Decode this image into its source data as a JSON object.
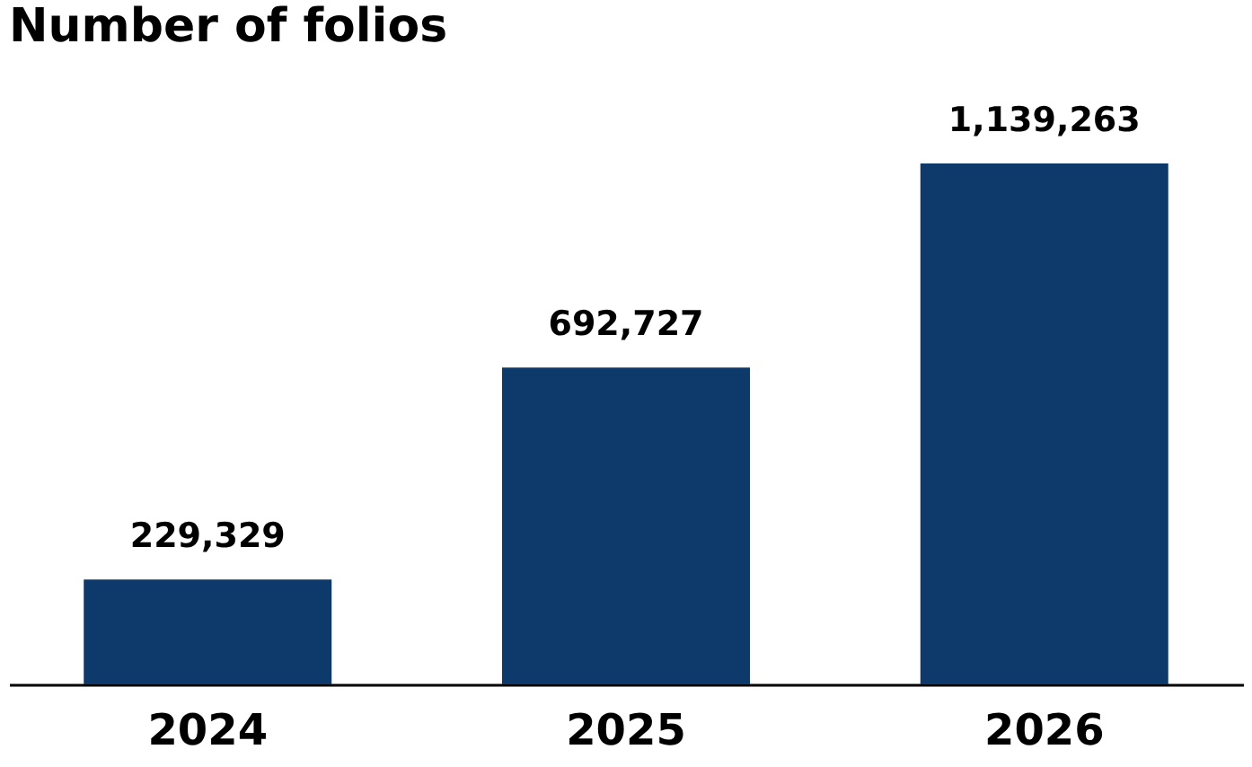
{
  "chart_data": {
    "type": "bar",
    "title": "Number of folios",
    "categories": [
      "2024",
      "2025",
      "2026"
    ],
    "values": [
      229329,
      692727,
      1139263
    ],
    "value_labels": [
      "229,329",
      "692,727",
      "1,139,263"
    ],
    "color": "#0e3a6b",
    "grid": false
  }
}
